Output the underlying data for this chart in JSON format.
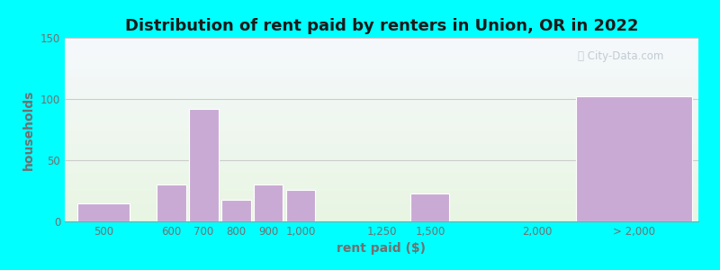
{
  "title": "Distribution of rent paid by renters in Union, OR in 2022",
  "xlabel": "rent paid ($)",
  "ylabel": "households",
  "bar_labels": [
    "500",
    "600",
    "700",
    "800",
    "900",
    "1,000",
    "1,250",
    "1,500",
    "2,000",
    "> 2,000"
  ],
  "bar_values": [
    15,
    30,
    92,
    18,
    30,
    26,
    0,
    23,
    0,
    102
  ],
  "bar_color": "#c9aad4",
  "ylim": [
    0,
    150
  ],
  "yticks": [
    0,
    50,
    100,
    150
  ],
  "outer_bg": "#00ffff",
  "grid_color": "#cccccc",
  "title_fontsize": 13,
  "axis_label_fontsize": 10,
  "tick_fontsize": 8.5,
  "watermark_text": "Ⓠ City-Data.com",
  "text_color": "#707070"
}
